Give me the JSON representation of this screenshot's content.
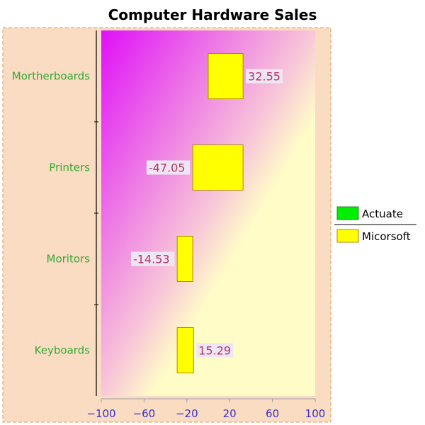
{
  "chart_data": {
    "type": "bar",
    "orientation": "horizontal",
    "title": "Computer Hardware Sales",
    "xlabel": "",
    "ylabel": "",
    "categories": [
      "Mortherboards",
      "Printers",
      "Moritors",
      "Keyboards"
    ],
    "series": [
      {
        "name": "Actuate",
        "values": [
          null,
          null,
          null,
          null
        ],
        "color": "#00ee00"
      },
      {
        "name": "Micorsoft",
        "values": [
          32.55,
          -47.05,
          -14.53,
          15.29
        ],
        "color": "#ffff00"
      }
    ],
    "bar_stacking": "from-previous-end",
    "xlim": [
      -100,
      100
    ],
    "xticks": [
      -100,
      -60,
      -20,
      20,
      60,
      100
    ],
    "grid": false,
    "legend_position": "right",
    "colors": {
      "frame_fill": "#f9dcc1",
      "frame_border": "#e09a55",
      "plot_gradient_start": "#e010f8",
      "plot_gradient_mid": "#f8c8d8",
      "plot_gradient_end": "#fffcc8",
      "value_label_bg": "#ece6f6"
    }
  }
}
